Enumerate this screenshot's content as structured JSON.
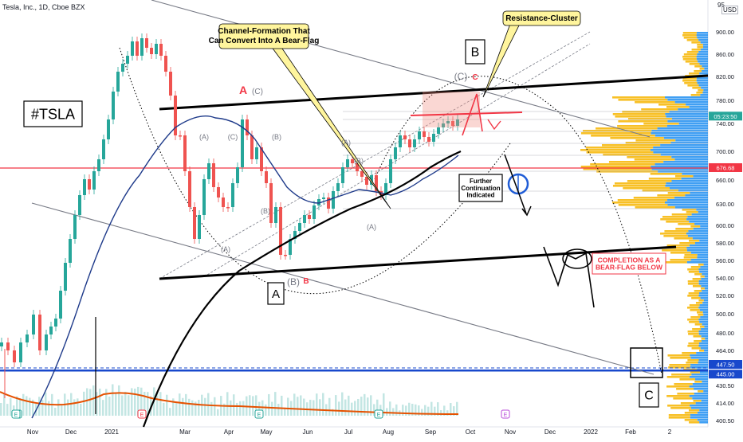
{
  "header": {
    "symbol_info": "Tesla, Inc., 1D, Cboe BZX",
    "currency": "USD",
    "currency_top": "95"
  },
  "chart_data": {
    "type": "candlestick",
    "title": "Tesla, Inc., 1D, Cboe BZX",
    "ticker_label": "#TSLA",
    "y_axis": {
      "ticks": [
        900,
        860,
        820,
        780,
        740,
        700,
        660,
        630,
        600,
        580,
        560,
        540,
        520,
        500,
        480,
        464,
        447.5,
        430.5,
        414,
        400.5
      ],
      "tick_labels": [
        "900.00",
        "860.00",
        "820.00",
        "780.00",
        "740.00",
        "700.00",
        "660.00",
        "630.00",
        "600.00",
        "580.00",
        "560.00",
        "540.00",
        "520.00",
        "500.00",
        "480.00",
        "464.00",
        "447.50",
        "430.50",
        "414.00",
        "400.50"
      ],
      "scale": "log"
    },
    "x_axis": {
      "tick_labels": [
        "Nov",
        "Dec",
        "2021",
        "Mar",
        "Apr",
        "May",
        "Jun",
        "Jul",
        "Aug",
        "Sep",
        "Oct",
        "Nov",
        "Dec",
        "2022",
        "Feb",
        "2"
      ]
    },
    "price_markers": [
      {
        "label": "05:23:50",
        "color": "#26a69a"
      },
      {
        "label": "676.68",
        "color": "#f23645"
      },
      {
        "label": "447.50",
        "color": "#1848cc"
      },
      {
        "label": "445.00",
        "color": "#1848cc"
      }
    ],
    "current_price": 752,
    "horizontal_lines": [
      {
        "value": 676.68,
        "color": "#f23645"
      },
      {
        "value": 447.5,
        "color": "#1848cc"
      },
      {
        "value": 445,
        "color": "#1848cc"
      }
    ],
    "annotations": [
      {
        "text": "Channel-Formation That\nCan Convert Into A Bear-Flag",
        "style": "yellow-callout"
      },
      {
        "text": "Resistance-Cluster",
        "style": "yellow-callout"
      },
      {
        "text": "#TSLA",
        "style": "boxed"
      },
      {
        "text": "B",
        "style": "boxed"
      },
      {
        "text": "A",
        "style": "boxed"
      },
      {
        "text": "C",
        "style": "boxed"
      },
      {
        "text": "Further\nContinuation\nIndicated",
        "style": "boxed-small"
      },
      {
        "text": "COMPLETION AS A\nBEAR-FLAG BELOW",
        "style": "red-boxed"
      }
    ],
    "wave_labels": [
      {
        "text": "A",
        "color": "#f23645"
      },
      {
        "text": "(C)",
        "color": "#787b86"
      },
      {
        "text": "(A)",
        "color": "#787b86"
      },
      {
        "text": "(B)",
        "color": "#787b86"
      },
      {
        "text": "(A)",
        "color": "#787b86"
      },
      {
        "text": "(B)",
        "color": "#787b86"
      },
      {
        "text": "(A)",
        "color": "#787b86"
      },
      {
        "text": "(B)",
        "color": "#787b86"
      },
      {
        "text": "(A)",
        "color": "#787b86"
      },
      {
        "text": "(B)",
        "color": "#787b86"
      },
      {
        "text": "B",
        "color": "#f23645"
      },
      {
        "text": "(C)",
        "color": "#787b86"
      },
      {
        "text": "C",
        "color": "#f23645"
      },
      {
        "text": "(C)",
        "color": "#787b86"
      }
    ],
    "event_markers": [
      "E",
      "E",
      "E",
      "E",
      "E",
      "E"
    ],
    "series": [
      {
        "name": "",
        "type": "candles"
      },
      {
        "name": "",
        "type": "moving-average",
        "color": "#1e3a8a"
      },
      {
        "name": "",
        "type": "moving-average",
        "color": "#000000"
      },
      {
        "name": "",
        "type": "volume"
      },
      {
        "name": "",
        "type": "volume-average",
        "color": "#e65100"
      }
    ],
    "volume_profile": {
      "colors": [
        "#f7b500",
        "#1f8ef1"
      ]
    }
  }
}
